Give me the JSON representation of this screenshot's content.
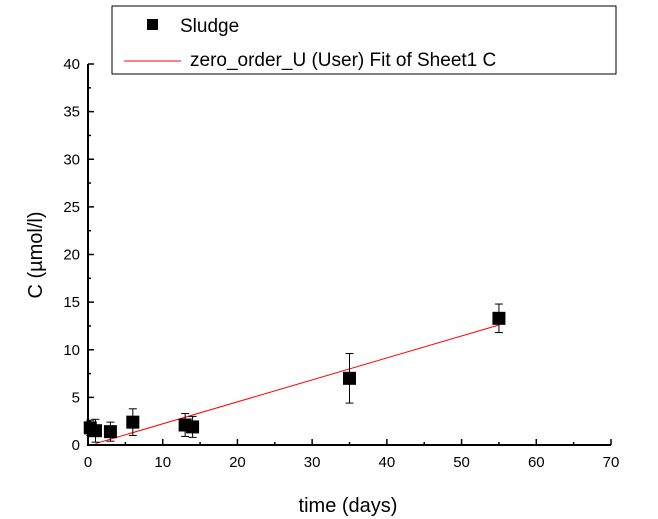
{
  "chart_data": {
    "type": "scatter",
    "xlabel": "time (days)",
    "ylabel": "C (µmol/l)",
    "xlim": [
      0,
      70
    ],
    "ylim": [
      0,
      40
    ],
    "x_ticks": [
      "0",
      "10",
      "20",
      "30",
      "40",
      "50",
      "60",
      "70"
    ],
    "y_ticks": [
      "0",
      "5",
      "10",
      "15",
      "20",
      "25",
      "30",
      "35",
      "40"
    ],
    "grid": false,
    "legend_position": "top",
    "series": [
      {
        "name": "Sludge",
        "type": "scatter",
        "color": "#000000",
        "marker": "square",
        "points": [
          {
            "x": 0.3,
            "y": 1.8,
            "err": 0.8
          },
          {
            "x": 1,
            "y": 1.5,
            "err": 1.2
          },
          {
            "x": 3,
            "y": 1.4,
            "err": 1.0
          },
          {
            "x": 6,
            "y": 2.4,
            "err": 1.4
          },
          {
            "x": 13,
            "y": 2.1,
            "err": 1.2
          },
          {
            "x": 14,
            "y": 1.9,
            "err": 1.1
          },
          {
            "x": 35,
            "y": 7.0,
            "err": 2.6
          },
          {
            "x": 55,
            "y": 13.3,
            "err": 1.5
          }
        ]
      },
      {
        "name": "zero_order_U (User) Fit of Sheet1 C",
        "type": "line",
        "color": "#ff0000",
        "points": [
          {
            "x": 1,
            "y": 0.15
          },
          {
            "x": 55,
            "y": 12.6
          }
        ]
      }
    ]
  }
}
